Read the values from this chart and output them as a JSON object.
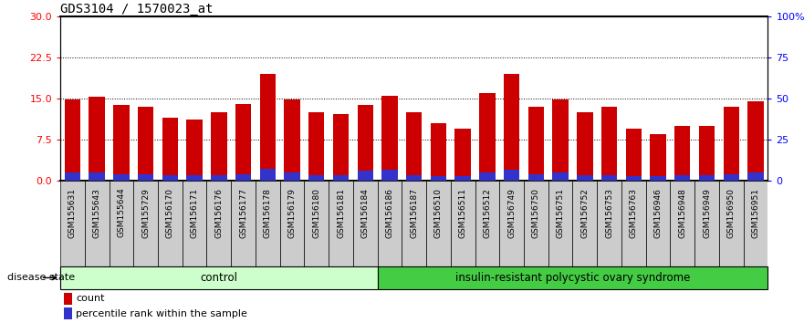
{
  "title": "GDS3104 / 1570023_at",
  "samples": [
    "GSM155631",
    "GSM155643",
    "GSM155644",
    "GSM155729",
    "GSM156170",
    "GSM156171",
    "GSM156176",
    "GSM156177",
    "GSM156178",
    "GSM156179",
    "GSM156180",
    "GSM156181",
    "GSM156184",
    "GSM156186",
    "GSM156187",
    "GSM156510",
    "GSM156511",
    "GSM156512",
    "GSM156749",
    "GSM156750",
    "GSM156751",
    "GSM156752",
    "GSM156753",
    "GSM156763",
    "GSM156946",
    "GSM156948",
    "GSM156949",
    "GSM156950",
    "GSM156951"
  ],
  "red_values": [
    14.8,
    15.3,
    13.8,
    13.5,
    11.5,
    11.2,
    12.5,
    14.0,
    19.5,
    14.8,
    12.5,
    12.2,
    13.8,
    15.5,
    12.5,
    10.5,
    9.5,
    16.0,
    19.5,
    13.5,
    14.8,
    12.5,
    13.5,
    9.5,
    8.5,
    10.0,
    10.0,
    13.5,
    14.5
  ],
  "blue_values": [
    1.5,
    1.5,
    1.2,
    1.2,
    1.0,
    1.0,
    1.0,
    1.2,
    2.2,
    1.5,
    1.0,
    1.0,
    1.8,
    2.0,
    1.0,
    0.8,
    0.8,
    1.5,
    2.0,
    1.2,
    1.5,
    1.0,
    1.0,
    0.8,
    0.8,
    1.0,
    1.0,
    1.2,
    1.5
  ],
  "control_count": 13,
  "disease_label": "insulin-resistant polycystic ovary syndrome",
  "control_label": "control",
  "disease_state_label": "disease state",
  "left_yticks": [
    0,
    7.5,
    15,
    22.5,
    30
  ],
  "right_yticks": [
    0,
    25,
    50,
    75,
    100
  ],
  "right_yticklabels": [
    "0",
    "25",
    "50",
    "75",
    "100%"
  ],
  "hlines": [
    7.5,
    15,
    22.5
  ],
  "ylim": [
    0,
    30
  ],
  "bar_color_red": "#CC0000",
  "bar_color_blue": "#3333CC",
  "control_bg_light": "#CCFFCC",
  "control_bg_dark": "#55DD55",
  "disease_bg": "#44CC44",
  "tick_bg": "#CCCCCC",
  "bar_width": 0.65,
  "tick_label_fontsize": 6.5,
  "title_fontsize": 10
}
